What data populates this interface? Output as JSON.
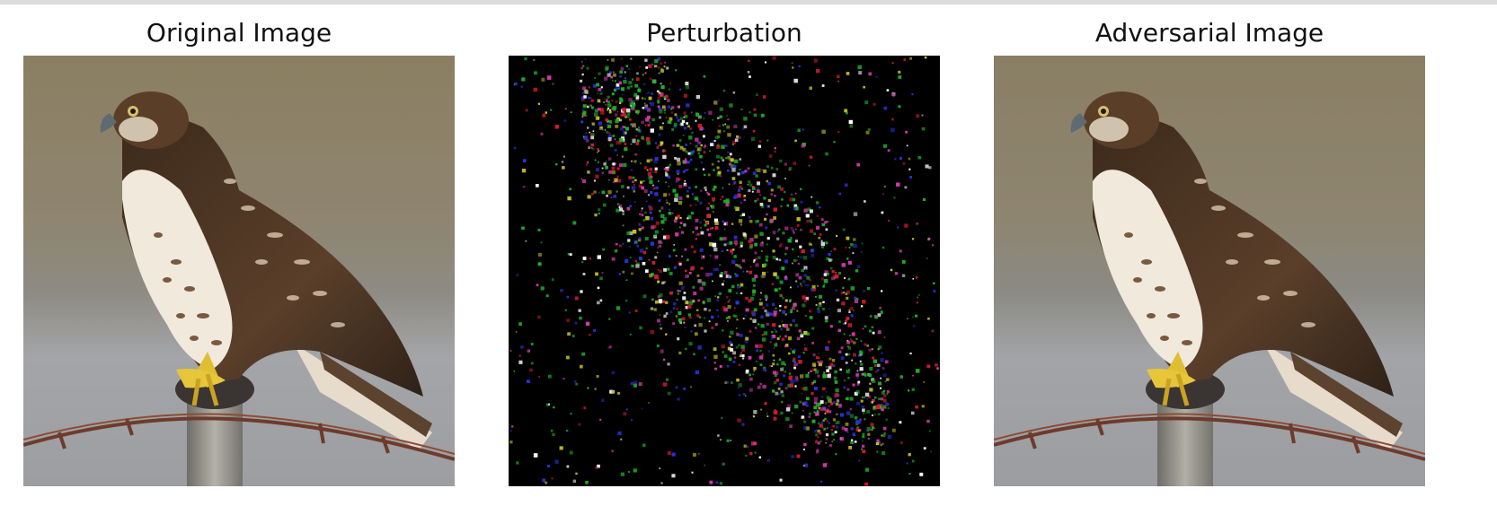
{
  "figure": {
    "panels": [
      {
        "title": "Original Image",
        "kind": "photo",
        "subject": "red-tailed hawk perched on fence post"
      },
      {
        "title": "Perturbation",
        "kind": "noise",
        "subject": "adversarial perturbation map"
      },
      {
        "title": "Adversarial Image",
        "kind": "photo",
        "subject": "red-tailed hawk perched on fence post"
      }
    ]
  },
  "colors": {
    "background_top": "#8c8063",
    "background_mid": "#8a8678",
    "background_bottom": "#9b9c9f",
    "hawk_back": "#4e3624",
    "hawk_breast": "#f2ede2",
    "hawk_feet": "#e3c233",
    "post": "#9a9a96",
    "wire": "#6b3b2c",
    "noise_red": "#d21b2c",
    "noise_green": "#1fae2a",
    "noise_blue": "#2a33d9",
    "noise_yellow": "#c9c12a",
    "noise_pink": "#d23aa8"
  }
}
